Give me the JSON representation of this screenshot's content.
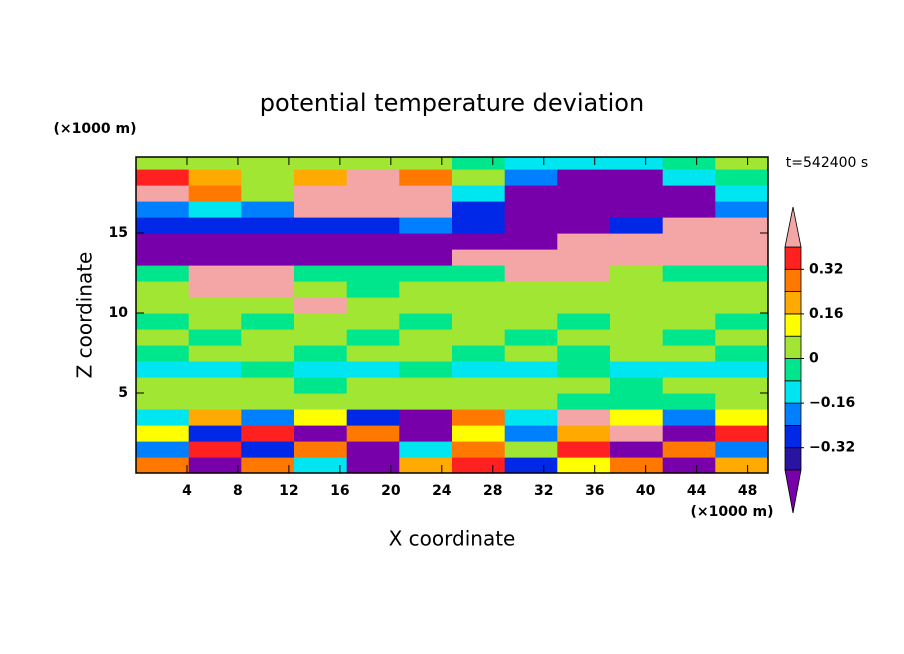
{
  "chart_data": {
    "type": "filled-contour",
    "title": "potential temperature deviation",
    "xlabel": "X coordinate",
    "ylabel": "Z coordinate",
    "x_unit": "(×1000 m)",
    "y_unit": "(×1000 m)",
    "annotation": "t=542400 s",
    "xlim": [
      0,
      49.6
    ],
    "ylim": [
      0,
      19.75
    ],
    "xticks": [
      4,
      8,
      12,
      16,
      20,
      24,
      28,
      32,
      36,
      40,
      44,
      48
    ],
    "yticks": [
      5,
      10,
      15
    ],
    "x": [
      2.07,
      6.2,
      10.33,
      14.47,
      18.6,
      22.73,
      26.87,
      31,
      35.13,
      39.27,
      43.4,
      47.53
    ],
    "y": [
      0.5,
      1.5,
      2.5,
      3.5,
      4.5,
      5.5,
      6.5,
      7.5,
      8.5,
      9.5,
      10.5,
      11.5,
      12.5,
      13.5,
      14.5,
      15.5,
      16.5,
      17.5,
      18.5,
      19.5
    ],
    "z": [
      [
        0.3,
        -0.45,
        0.3,
        -0.1,
        -0.45,
        0.2,
        0.35,
        -0.3,
        0.1,
        0.3,
        -0.45,
        0.2
      ],
      [
        -0.2,
        0.35,
        -0.3,
        0.3,
        -0.45,
        -0.1,
        0.3,
        0.0,
        0.35,
        -0.45,
        0.3,
        -0.2
      ],
      [
        0.1,
        -0.3,
        0.35,
        -0.45,
        0.3,
        -0.45,
        0.1,
        -0.2,
        0.2,
        0.45,
        -0.45,
        0.35
      ],
      [
        -0.1,
        0.2,
        -0.2,
        0.1,
        -0.3,
        -0.45,
        0.3,
        -0.1,
        0.45,
        0.1,
        -0.2,
        0.1
      ],
      [
        0.04,
        0.04,
        0.04,
        0.04,
        0.04,
        0.04,
        0.04,
        0.04,
        -0.04,
        -0.04,
        -0.04,
        0.04
      ],
      [
        0.04,
        0.04,
        0.04,
        -0.04,
        0.04,
        0.04,
        0.04,
        0.04,
        0.04,
        -0.04,
        0.04,
        0.04
      ],
      [
        -0.12,
        -0.12,
        -0.04,
        -0.12,
        -0.12,
        -0.04,
        -0.12,
        -0.12,
        -0.04,
        -0.12,
        -0.12,
        -0.12
      ],
      [
        -0.04,
        0.04,
        0.04,
        -0.04,
        0.04,
        0.04,
        -0.04,
        0.04,
        -0.04,
        0.04,
        0.04,
        -0.04
      ],
      [
        0.04,
        -0.04,
        0.04,
        0.04,
        -0.04,
        0.04,
        0.04,
        -0.04,
        0.04,
        0.04,
        -0.04,
        0.04
      ],
      [
        -0.04,
        0.04,
        -0.04,
        0.04,
        0.04,
        -0.04,
        0.04,
        0.04,
        -0.04,
        0.04,
        0.04,
        -0.04
      ],
      [
        0.04,
        0.04,
        0.04,
        0.45,
        0.04,
        0.04,
        0.04,
        0.04,
        0.04,
        0.04,
        0.04,
        0.04
      ],
      [
        0.04,
        0.45,
        0.45,
        0.04,
        -0.04,
        0.04,
        0.04,
        0.04,
        0.04,
        0.04,
        0.04,
        0.04
      ],
      [
        -0.04,
        0.45,
        0.45,
        -0.04,
        -0.04,
        -0.04,
        -0.04,
        0.45,
        0.45,
        0.04,
        -0.04,
        -0.04
      ],
      [
        -0.45,
        -0.45,
        -0.45,
        -0.45,
        -0.45,
        -0.45,
        0.45,
        0.45,
        0.45,
        0.45,
        0.45,
        0.45
      ],
      [
        -0.45,
        -0.45,
        -0.45,
        -0.45,
        -0.45,
        -0.45,
        -0.45,
        -0.45,
        0.45,
        0.45,
        0.45,
        0.45
      ],
      [
        -0.3,
        -0.3,
        -0.3,
        -0.3,
        -0.3,
        -0.2,
        -0.3,
        -0.45,
        -0.45,
        -0.3,
        0.45,
        0.45
      ],
      [
        -0.2,
        -0.12,
        -0.2,
        0.45,
        0.45,
        0.45,
        -0.3,
        -0.45,
        -0.45,
        -0.45,
        -0.45,
        -0.2
      ],
      [
        0.45,
        0.3,
        0.04,
        0.45,
        0.45,
        0.45,
        -0.12,
        -0.45,
        -0.45,
        -0.45,
        -0.45,
        -0.12
      ],
      [
        0.35,
        0.2,
        0.04,
        0.2,
        0.45,
        0.3,
        0.04,
        -0.2,
        -0.45,
        -0.45,
        -0.12,
        -0.04
      ],
      [
        0.04,
        0.04,
        0.04,
        0.04,
        0.04,
        0.04,
        -0.04,
        -0.12,
        -0.12,
        -0.12,
        -0.04,
        0.04
      ]
    ],
    "levels": [
      -0.4,
      -0.32,
      -0.24,
      -0.16,
      -0.08,
      0,
      0.08,
      0.16,
      0.24,
      0.32,
      0.4
    ],
    "colors": [
      "#7800aa",
      "#2814a0",
      "#0028e6",
      "#0080ff",
      "#00e6f0",
      "#00e68c",
      "#a0e632",
      "#ffff00",
      "#ffaa00",
      "#ff7800",
      "#ff2020",
      "#f4a6a6"
    ],
    "colorbar_ticks": [
      0.32,
      0.16,
      0,
      {
        "value": -0.16,
        "label": "−0.16"
      },
      {
        "value": -0.32,
        "label": "−0.32"
      }
    ]
  }
}
